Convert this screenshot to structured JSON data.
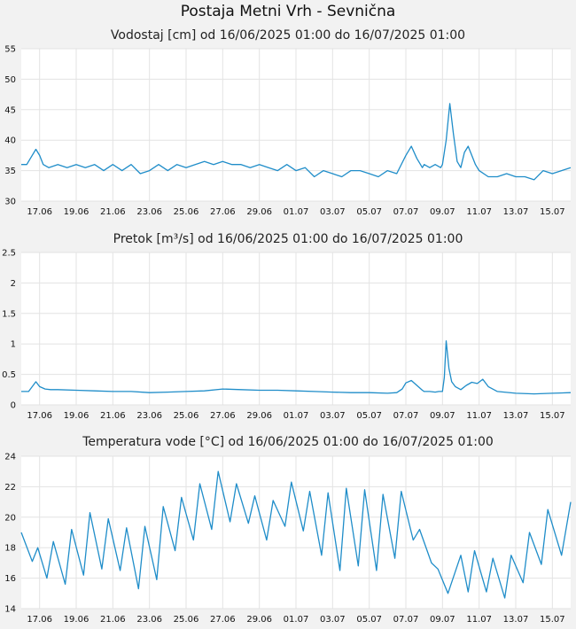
{
  "page_title": "Postaja Metni Vrh - Sevnična",
  "colors": {
    "line": "#1f8dc9",
    "grid": "#e3e3e3",
    "plot_bg": "#ffffff",
    "page_bg": "#f2f2f2"
  },
  "chart_data": [
    {
      "type": "line",
      "title": "Vodostaj [cm] od 16/06/2025 01:00 do 16/07/2025 01:00",
      "xlabel": "",
      "ylabel": "",
      "x_ticks": [
        "17.06",
        "19.06",
        "21.06",
        "23.06",
        "25.06",
        "27.06",
        "29.06",
        "01.07",
        "03.07",
        "05.07",
        "07.07",
        "09.07",
        "11.07",
        "13.07",
        "15.07"
      ],
      "y_ticks": [
        "30",
        "35",
        "40",
        "45",
        "50",
        "55"
      ],
      "ylim": [
        30,
        55
      ],
      "grid": true,
      "x_days": [
        0,
        0.3,
        0.5,
        0.8,
        1,
        1.2,
        1.5,
        2,
        2.5,
        3,
        3.5,
        4,
        4.5,
        5,
        5.5,
        6,
        6.5,
        7,
        7.5,
        8,
        8.5,
        9,
        9.5,
        10,
        10.5,
        11,
        11.5,
        12,
        12.5,
        13,
        13.5,
        14,
        14.5,
        15,
        15.5,
        16,
        16.5,
        17,
        17.5,
        18,
        18.5,
        19,
        19.5,
        20,
        20.5,
        21,
        21.3,
        21.6,
        21.9,
        22,
        22.3,
        22.6,
        22.9,
        23,
        23.2,
        23.4,
        23.6,
        23.8,
        24,
        24.2,
        24.4,
        24.6,
        24.8,
        25,
        25.5,
        26,
        26.5,
        27,
        27.5,
        28,
        28.5,
        29,
        29.5,
        30
      ],
      "values": [
        36,
        36,
        37,
        38.5,
        37.5,
        36,
        35.5,
        36,
        35.5,
        36,
        35.5,
        36,
        35,
        36,
        35,
        36,
        34.5,
        35,
        36,
        35,
        36,
        35.5,
        36,
        36.5,
        36,
        36.5,
        36,
        36,
        35.5,
        36,
        35.5,
        35,
        36,
        35,
        35.5,
        34,
        35,
        34.5,
        34,
        35,
        35,
        34.5,
        34,
        35,
        34.5,
        37.5,
        39,
        37,
        35.5,
        36,
        35.5,
        36,
        35.5,
        36,
        40,
        46,
        41,
        36.5,
        35.5,
        38,
        39,
        37.5,
        36,
        35,
        34,
        34,
        34.5,
        34,
        34,
        33.5,
        35,
        34.5,
        35,
        35.5
      ]
    },
    {
      "type": "line",
      "title": "Pretok [m³/s] od 16/06/2025 01:00 do 16/07/2025 01:00",
      "xlabel": "",
      "ylabel": "",
      "x_ticks": [
        "17.06",
        "19.06",
        "21.06",
        "23.06",
        "25.06",
        "27.06",
        "29.06",
        "01.07",
        "03.07",
        "05.07",
        "07.07",
        "09.07",
        "11.07",
        "13.07",
        "15.07"
      ],
      "y_ticks": [
        "0",
        "0.5",
        "1",
        "1.5",
        "2",
        "2.5"
      ],
      "ylim": [
        0,
        2.5
      ],
      "grid": true,
      "x_days": [
        0,
        0.4,
        0.6,
        0.8,
        1,
        1.3,
        1.6,
        2,
        3,
        4,
        5,
        6,
        7,
        8,
        9,
        10,
        11,
        12,
        13,
        14,
        15,
        16,
        17,
        18,
        19,
        20,
        20.5,
        20.8,
        21,
        21.3,
        21.6,
        21.9,
        22,
        22.3,
        22.6,
        22.8,
        23,
        23.1,
        23.2,
        23.35,
        23.5,
        23.7,
        24,
        24.3,
        24.6,
        24.9,
        25.2,
        25.5,
        26,
        27,
        28,
        29,
        30
      ],
      "values": [
        0.22,
        0.22,
        0.3,
        0.38,
        0.3,
        0.26,
        0.25,
        0.25,
        0.24,
        0.23,
        0.22,
        0.22,
        0.2,
        0.21,
        0.22,
        0.23,
        0.26,
        0.25,
        0.24,
        0.24,
        0.23,
        0.22,
        0.21,
        0.2,
        0.2,
        0.19,
        0.2,
        0.26,
        0.36,
        0.4,
        0.32,
        0.24,
        0.22,
        0.22,
        0.21,
        0.22,
        0.22,
        0.45,
        1.05,
        0.6,
        0.38,
        0.3,
        0.25,
        0.32,
        0.37,
        0.35,
        0.42,
        0.3,
        0.22,
        0.19,
        0.18,
        0.19,
        0.2
      ]
    },
    {
      "type": "line",
      "title": "Temperatura vode [°C] od 16/06/2025 01:00 do 16/07/2025 01:00",
      "xlabel": "",
      "ylabel": "",
      "x_ticks": [
        "17.06",
        "19.06",
        "21.06",
        "23.06",
        "25.06",
        "27.06",
        "29.06",
        "01.07",
        "03.07",
        "05.07",
        "07.07",
        "09.07",
        "11.07",
        "13.07",
        "15.07"
      ],
      "y_ticks": [
        "14",
        "16",
        "18",
        "20",
        "22",
        "24"
      ],
      "ylim": [
        14,
        24
      ],
      "grid": true,
      "x_days": [
        0,
        0.6,
        0.9,
        1.4,
        1.75,
        2.4,
        2.75,
        3.4,
        3.75,
        4.4,
        4.75,
        5.4,
        5.75,
        6.4,
        6.75,
        7.4,
        7.75,
        8.4,
        8.75,
        9.4,
        9.75,
        10.4,
        10.75,
        11.4,
        11.75,
        12.4,
        12.75,
        13.4,
        13.75,
        14.4,
        14.75,
        15.4,
        15.75,
        16.4,
        16.75,
        17.4,
        17.75,
        18.4,
        18.75,
        19.4,
        19.75,
        20.4,
        20.75,
        21.4,
        21.75,
        22.4,
        22.75,
        23.3,
        24,
        24.4,
        24.75,
        25.4,
        25.75,
        26.4,
        26.75,
        27.4,
        27.75,
        28.4,
        28.75,
        29.5,
        30
      ],
      "values": [
        19,
        17.1,
        18,
        16,
        18.4,
        15.6,
        19.2,
        16.2,
        20.3,
        16.6,
        19.9,
        16.5,
        19.3,
        15.3,
        19.4,
        15.9,
        20.7,
        17.8,
        21.3,
        18.5,
        22.2,
        19.2,
        23,
        19.7,
        22.2,
        19.6,
        21.4,
        18.5,
        21.1,
        19.4,
        22.3,
        19.1,
        21.7,
        17.5,
        21.6,
        16.5,
        21.9,
        16.8,
        21.8,
        16.5,
        21.5,
        17.3,
        21.7,
        18.5,
        19.2,
        17,
        16.6,
        15,
        17.5,
        15.1,
        17.8,
        15.1,
        17.3,
        14.7,
        17.5,
        15.7,
        19,
        16.9,
        20.5,
        17.5,
        21
      ]
    }
  ]
}
